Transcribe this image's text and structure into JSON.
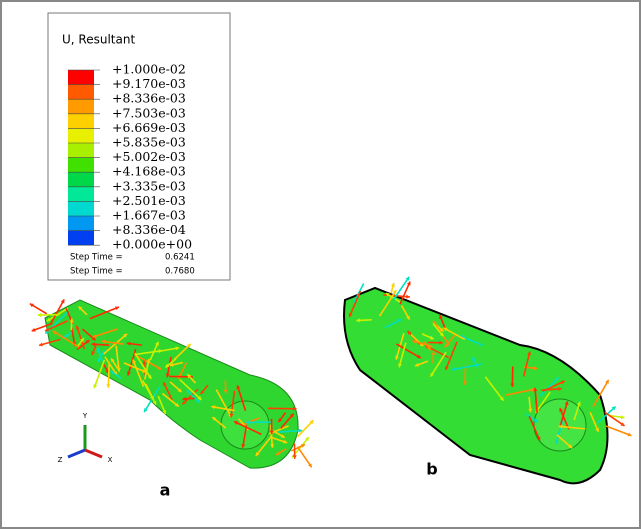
{
  "legend": {
    "title": "U, Resultant",
    "labels": [
      "+1.000e-02",
      "+9.170e-03",
      "+8.336e-03",
      "+7.503e-03",
      "+6.669e-03",
      "+5.835e-03",
      "+5.002e-03",
      "+4.168e-03",
      "+3.335e-03",
      "+2.501e-03",
      "+1.667e-03",
      "+8.336e-04",
      "+0.000e+00"
    ],
    "colors": [
      "#ff0000",
      "#ff5a00",
      "#ff9a00",
      "#ffd000",
      "#e8f000",
      "#a8f000",
      "#40e000",
      "#00d84a",
      "#00e898",
      "#00d8d0",
      "#0098f0",
      "#0040f0"
    ]
  },
  "step_times": [
    {
      "label": "Step Time =",
      "value": "0.6241"
    },
    {
      "label": "Step Time =",
      "value": "0.7680"
    }
  ],
  "panels": [
    {
      "label": "a"
    },
    {
      "label": "b"
    }
  ],
  "triad": {
    "y": "Y",
    "z": "Z",
    "x": "X"
  }
}
